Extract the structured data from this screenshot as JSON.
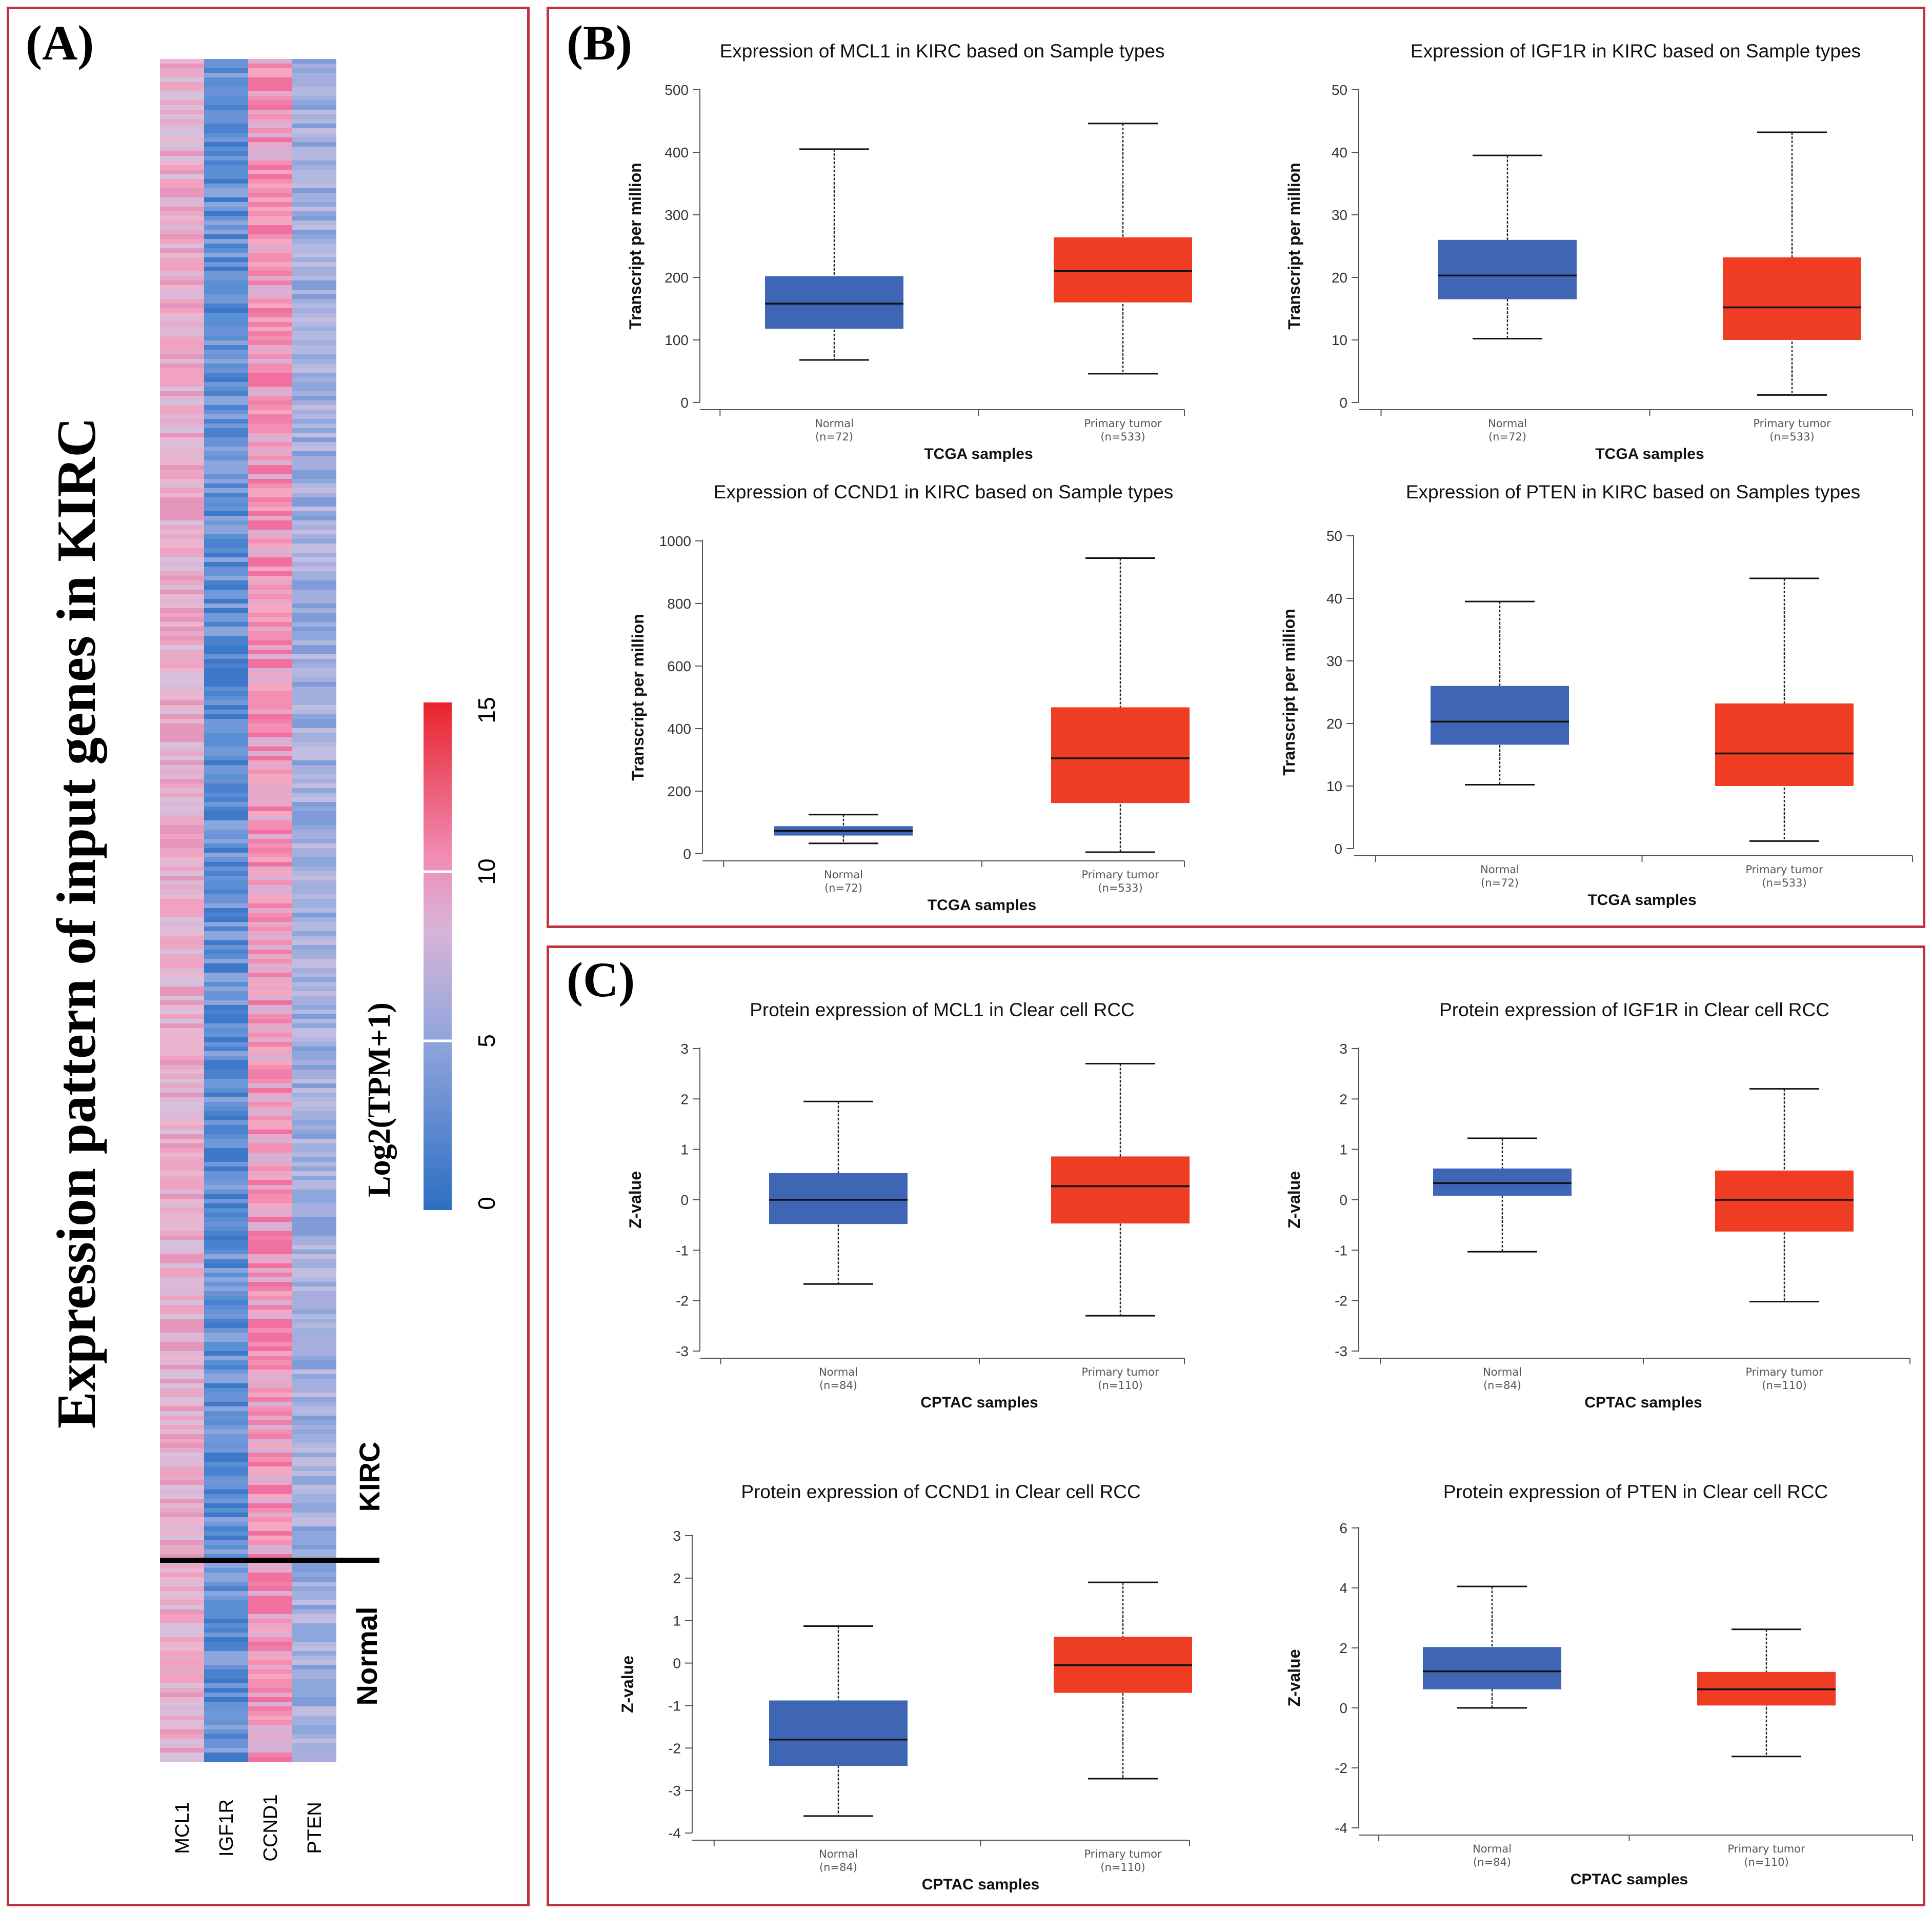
{
  "panels": {
    "a_label": "(A)",
    "b_label": "(B)",
    "c_label": "(C)"
  },
  "heatmap": {
    "title": "Expression pattern of input genes in KIRC",
    "genes": [
      "MCL1",
      "IGF1R",
      "CCND1",
      "PTEN"
    ],
    "groups": [
      "KIRC",
      "Normal"
    ],
    "colorbar_label": "Log2(TPM+1)",
    "colorbar_ticks": [
      "0",
      "5",
      "10",
      "15"
    ],
    "colorbar_range": [
      0,
      15
    ],
    "colors": {
      "low": "#2b6fc2",
      "mid": "#c4b6dc",
      "high": "#e8232b"
    }
  },
  "colors": {
    "normal": "#3f66b5",
    "tumor": "#ee3d23",
    "frame": "#c0323f"
  },
  "chart_data": [
    {
      "type": "box",
      "title": "Expression of MCL1 in KIRC based on Sample types",
      "ylabel": "Transcript per million",
      "xlabel": "TCGA samples",
      "ylim": [
        0,
        500
      ],
      "yticks": [
        "0",
        "100",
        "200",
        "300",
        "400",
        "500"
      ],
      "categories": [
        {
          "name": "Normal",
          "n": "(n=72)"
        },
        {
          "name": "Primary tumor",
          "n": "(n=533)"
        }
      ],
      "boxes": [
        {
          "min": 68,
          "q1": 118,
          "median": 158,
          "q3": 202,
          "max": 405
        },
        {
          "min": 46,
          "q1": 160,
          "median": 210,
          "q3": 264,
          "max": 446
        }
      ]
    },
    {
      "type": "box",
      "title": "Expression of IGF1R in KIRC based on Sample types",
      "ylabel": "Transcript per million",
      "xlabel": "TCGA samples",
      "ylim": [
        0,
        50
      ],
      "yticks": [
        "0",
        "10",
        "20",
        "30",
        "40",
        "50"
      ],
      "categories": [
        {
          "name": "Normal",
          "n": "(n=72)"
        },
        {
          "name": "Primary tumor",
          "n": "(n=533)"
        }
      ],
      "boxes": [
        {
          "min": 10.2,
          "q1": 16.5,
          "median": 20.3,
          "q3": 26,
          "max": 39.5
        },
        {
          "min": 1.2,
          "q1": 10,
          "median": 15.2,
          "q3": 23.2,
          "max": 43.2
        }
      ]
    },
    {
      "type": "box",
      "title": "Expression of CCND1 in KIRC based on Sample types",
      "ylabel": "Transcript per million",
      "xlabel": "TCGA samples",
      "ylim": [
        0,
        1000
      ],
      "yticks": [
        "0",
        "200",
        "400",
        "600",
        "800",
        "1000"
      ],
      "categories": [
        {
          "name": "Normal",
          "n": "(n=72)"
        },
        {
          "name": "Primary tumor",
          "n": "(n=533)"
        }
      ],
      "boxes": [
        {
          "min": 33,
          "q1": 58,
          "median": 73,
          "q3": 88,
          "max": 125
        },
        {
          "min": 5,
          "q1": 162,
          "median": 305,
          "q3": 468,
          "max": 945
        }
      ]
    },
    {
      "type": "box",
      "title": "Expression of PTEN in KIRC based on Samples types",
      "ylabel": "Transcript per million",
      "xlabel": "TCGA samples",
      "ylim": [
        0,
        50
      ],
      "yticks": [
        "0",
        "10",
        "20",
        "30",
        "40",
        "50"
      ],
      "categories": [
        {
          "name": "Normal",
          "n": "(n=72)"
        },
        {
          "name": "Primary tumor",
          "n": "(n=533)"
        }
      ],
      "boxes": [
        {
          "min": 10.2,
          "q1": 16.6,
          "median": 20.3,
          "q3": 26,
          "max": 39.5
        },
        {
          "min": 1.2,
          "q1": 10,
          "median": 15.2,
          "q3": 23.2,
          "max": 43.2
        }
      ]
    },
    {
      "type": "box",
      "title": "Protein expression of MCL1 in Clear cell RCC",
      "ylabel": "Z-value",
      "xlabel": "CPTAC samples",
      "ylim": [
        -3,
        3
      ],
      "yticks": [
        "-3",
        "-2",
        "-1",
        "0",
        "1",
        "2",
        "3"
      ],
      "categories": [
        {
          "name": "Normal",
          "n": "(n=84)"
        },
        {
          "name": "Primary tumor",
          "n": "(n=110)"
        }
      ],
      "boxes": [
        {
          "min": -1.67,
          "q1": -0.48,
          "median": 0,
          "q3": 0.53,
          "max": 1.95
        },
        {
          "min": -2.3,
          "q1": -0.47,
          "median": 0.27,
          "q3": 0.86,
          "max": 2.7
        }
      ]
    },
    {
      "type": "box",
      "title": "Protein expression of IGF1R in Clear cell RCC",
      "ylabel": "Z-value",
      "xlabel": "CPTAC samples",
      "ylim": [
        -3,
        3
      ],
      "yticks": [
        "-3",
        "-2",
        "-1",
        "0",
        "1",
        "2",
        "3"
      ],
      "categories": [
        {
          "name": "Normal",
          "n": "(n=84)"
        },
        {
          "name": "Primary tumor",
          "n": "(n=110)"
        }
      ],
      "boxes": [
        {
          "min": -1.03,
          "q1": 0.08,
          "median": 0.33,
          "q3": 0.62,
          "max": 1.22
        },
        {
          "min": -2.02,
          "q1": -0.63,
          "median": 0,
          "q3": 0.58,
          "max": 2.2
        }
      ]
    },
    {
      "type": "box",
      "title": "Protein expression of CCND1 in Clear cell RCC",
      "ylabel": "Z-value",
      "xlabel": "CPTAC samples",
      "ylim": [
        -4,
        3
      ],
      "yticks": [
        "-4",
        "-3",
        "-2",
        "-1",
        "0",
        "1",
        "2",
        "3"
      ],
      "categories": [
        {
          "name": "Normal",
          "n": "(n=84)"
        },
        {
          "name": "Primary tumor",
          "n": "(n=110)"
        }
      ],
      "boxes": [
        {
          "min": -3.6,
          "q1": -2.42,
          "median": -1.8,
          "q3": -0.88,
          "max": 0.87
        },
        {
          "min": -2.72,
          "q1": -0.7,
          "median": -0.05,
          "q3": 0.62,
          "max": 1.9
        }
      ]
    },
    {
      "type": "box",
      "title": "Protein expression of PTEN in Clear cell RCC",
      "ylabel": "Z-value",
      "xlabel": "CPTAC samples",
      "ylim": [
        -4,
        6
      ],
      "yticks": [
        "-4",
        "-2",
        "0",
        "2",
        "4",
        "6"
      ],
      "categories": [
        {
          "name": "Normal",
          "n": "(n=84)"
        },
        {
          "name": "Primary tumor",
          "n": "(n=110)"
        }
      ],
      "boxes": [
        {
          "min": 0,
          "q1": 0.62,
          "median": 1.22,
          "q3": 2.03,
          "max": 4.05
        },
        {
          "min": -1.62,
          "q1": 0.08,
          "median": 0.62,
          "q3": 1.2,
          "max": 2.62
        }
      ]
    }
  ]
}
